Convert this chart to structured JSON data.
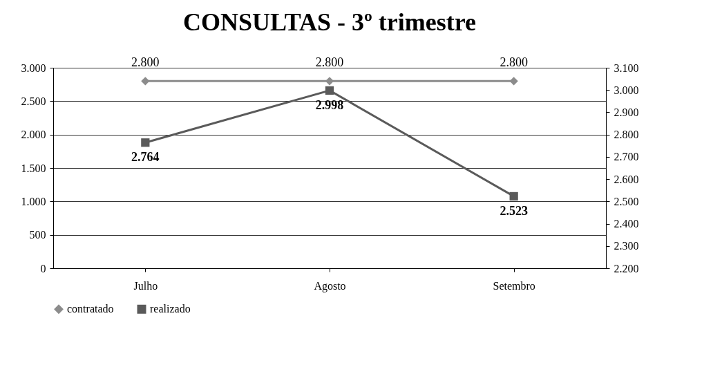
{
  "chart_data": {
    "type": "line",
    "title": "CONSULTAS - 3º trimestre",
    "categories": [
      "Julho",
      "Agosto",
      "Setembro"
    ],
    "ylim": [
      0,
      3000
    ],
    "yticks": [
      0,
      500,
      {
        "value": 1000,
        "label": "1.000"
      },
      {
        "value": 1500,
        "label": "1.500"
      },
      {
        "value": 2000,
        "label": "2.000"
      },
      {
        "value": 2500,
        "label": "2.500"
      },
      {
        "value": 3000,
        "label": "3.000"
      }
    ],
    "y2lim": [
      2200,
      3100
    ],
    "y2ticks": [
      {
        "value": 2200,
        "label": "2.200"
      },
      {
        "value": 2300,
        "label": "2.300"
      },
      {
        "value": 2400,
        "label": "2.400"
      },
      {
        "value": 2500,
        "label": "2.500"
      },
      {
        "value": 2600,
        "label": "2.600"
      },
      {
        "value": 2700,
        "label": "2.700"
      },
      {
        "value": 2800,
        "label": "2.800"
      },
      {
        "value": 2900,
        "label": "2.900"
      },
      {
        "value": 3000,
        "label": "3.000"
      },
      {
        "value": 3100,
        "label": "3.100"
      }
    ],
    "grid": "y",
    "legend": "bottom",
    "series": [
      {
        "name": "contratado",
        "color": "#8c8c8c",
        "values": [
          2800,
          2800,
          2800
        ],
        "marker": "diamond",
        "value_labels": [
          "2.800",
          "2.800",
          "2.800"
        ]
      },
      {
        "name": "realizado",
        "color": "#5a5a5a",
        "values": [
          2764,
          2998,
          2523
        ],
        "axis": "y2",
        "marker": "square",
        "value_labels": [
          "2.764",
          "2.998",
          "2.523"
        ]
      }
    ]
  }
}
